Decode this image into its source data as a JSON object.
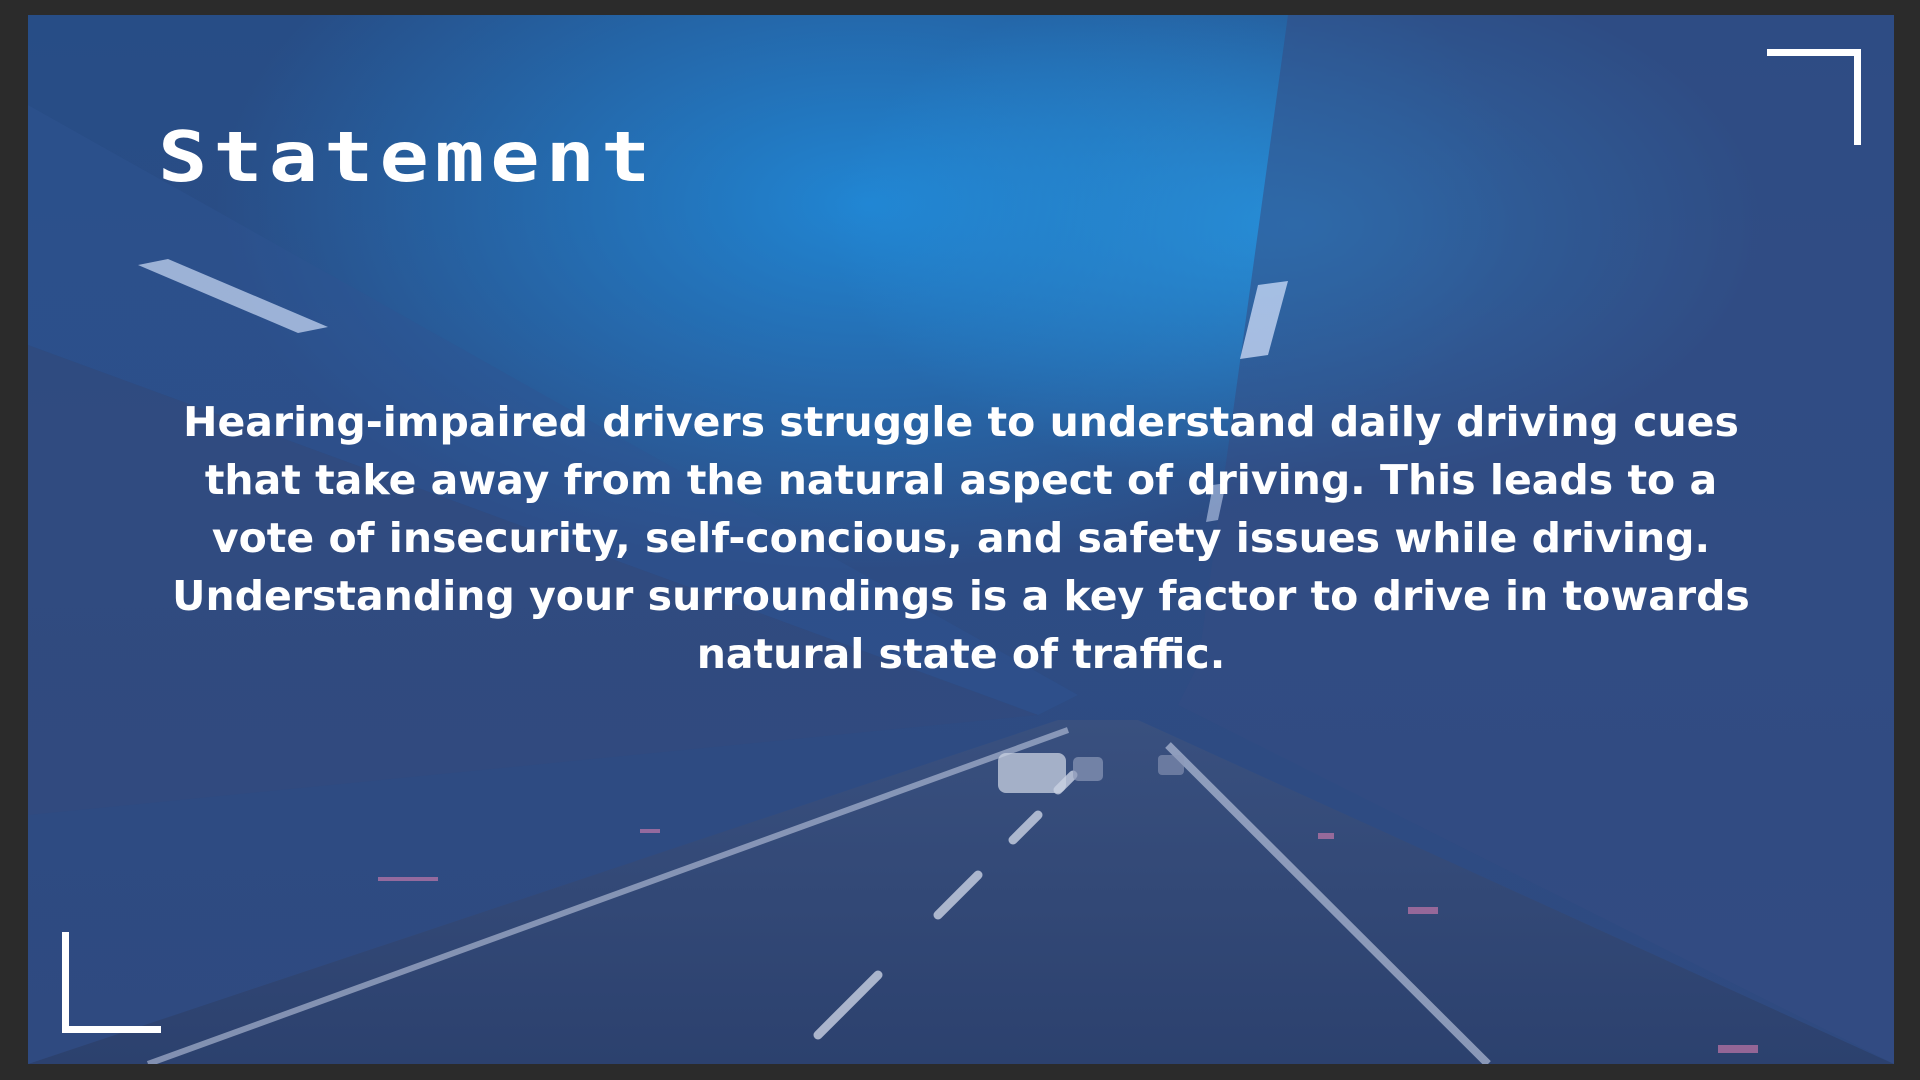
{
  "slide": {
    "title": "Statement",
    "statement_lines": [
      "Hearing-impaired drivers struggle to understand daily driving cues",
      "that take away from the natural aspect of driving. This leads to a",
      "vote of insecurity, self-concious, and safety issues while driving.",
      "Understanding your surroundings is a key factor to drive in towards",
      "natural state of traffic."
    ]
  },
  "colors": {
    "overlay": "#2c4a82",
    "tunnel_light": "#1e86d0",
    "text": "#ffffff",
    "frame": "#2b2b2b"
  },
  "decorations": [
    "corner-bracket-top-right",
    "corner-bracket-bottom-left"
  ]
}
